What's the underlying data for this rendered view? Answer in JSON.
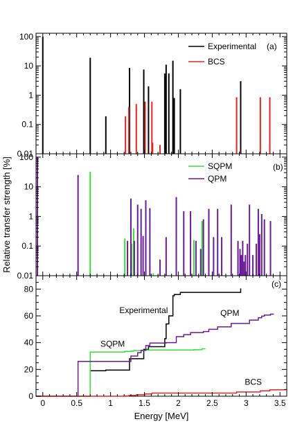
{
  "colors": {
    "experimental": "#000000",
    "bcs": "#e8231f",
    "sqpm": "#35e035",
    "qpm": "#6a1b9a",
    "axes": "#000000"
  },
  "shared_axis_labels": {
    "xlabel": "Energy [MeV]",
    "ylabel": "Relative transfer strength [%]"
  },
  "chart_data": [
    {
      "panel": "a",
      "panel_label": "(a)",
      "type": "bar",
      "yscale": "log",
      "xlim": [
        -0.1,
        3.6
      ],
      "ylim": [
        0.01,
        130
      ],
      "yticks": [
        0.01,
        0.1,
        1,
        10,
        100
      ],
      "ytick_labels": [
        "0.01",
        "0.1",
        "1",
        "10",
        "100"
      ],
      "grid": false,
      "legend_position": "top-right",
      "series": [
        {
          "name": "Experimental",
          "color": "#000000",
          "x": [
            0.0,
            0.7,
            0.93,
            1.28,
            1.49,
            1.56,
            1.8,
            1.82,
            1.86,
            1.92,
            1.94,
            2.03,
            2.92
          ],
          "values": [
            100,
            19,
            0.19,
            8.5,
            7.5,
            2.0,
            5.5,
            11,
            5.5,
            15,
            0.8,
            1.6,
            3.0
          ]
        },
        {
          "name": "BCS",
          "color": "#e8231f",
          "x": [
            1.22,
            1.27,
            1.38,
            1.51,
            1.61,
            1.62,
            1.73,
            2.86,
            3.21,
            3.35
          ],
          "values": [
            0.19,
            0.4,
            0.5,
            0.6,
            0.6,
            0.024,
            0.02,
            0.85,
            0.85,
            0.85
          ]
        }
      ]
    },
    {
      "panel": "b",
      "panel_label": "(b)",
      "type": "bar",
      "yscale": "log",
      "xlim": [
        -0.1,
        3.6
      ],
      "ylim": [
        0.01,
        130
      ],
      "yticks": [
        0.01,
        0.1,
        1,
        10,
        100
      ],
      "ytick_labels": [
        "0.01",
        "0.1",
        "1",
        "10",
        "100"
      ],
      "grid": false,
      "legend_position": "top-center",
      "series": [
        {
          "name": "SQPM",
          "color": "#35e035",
          "x": [
            0.7,
            1.21,
            1.31,
            1.34,
            1.52,
            1.63,
            2.23,
            2.35
          ],
          "values": [
            32,
            0.18,
            0.12,
            0.4,
            0.45,
            0.012,
            0.16,
            0.7
          ]
        },
        {
          "name": "QPM",
          "color": "#6a1b9a",
          "x": [
            -0.08,
            0.52,
            1.25,
            1.3,
            1.35,
            1.4,
            1.45,
            1.48,
            1.52,
            1.58,
            1.73,
            1.82,
            1.97,
            2.08,
            2.18,
            2.26,
            2.33,
            2.37,
            2.45,
            2.52,
            2.58,
            2.64,
            2.78,
            2.88,
            2.91,
            2.93,
            2.95,
            2.97,
            2.99,
            3.02,
            3.05,
            3.1,
            3.15,
            3.18,
            3.2,
            3.23,
            3.27,
            3.36
          ],
          "values": [
            100,
            25,
            0.15,
            4,
            0.15,
            2.5,
            1.8,
            0.22,
            3.5,
            1.9,
            0.035,
            0.2,
            4.5,
            1.5,
            1.5,
            0.15,
            0.08,
            0.8,
            1.8,
            0.2,
            1.8,
            0.2,
            2.5,
            0.15,
            0.08,
            0.05,
            0.15,
            0.03,
            0.05,
            0.12,
            2.5,
            0.05,
            0.12,
            1.8,
            0.25,
            1.2,
            0.8,
            0.7
          ]
        }
      ]
    },
    {
      "panel": "c",
      "panel_label": "(c)",
      "type": "line",
      "xlim": [
        -0.1,
        3.6
      ],
      "ylim": [
        0,
        90
      ],
      "xticks": [
        0,
        0.5,
        1,
        1.5,
        2,
        2.5,
        3,
        3.5
      ],
      "xtick_labels": [
        "0",
        "0.5",
        "1",
        "1.5",
        "2",
        "2.5",
        "3",
        "3.5"
      ],
      "yticks": [
        0,
        20,
        40,
        60,
        80
      ],
      "ytick_labels": [
        "0",
        "20",
        "40",
        "60",
        "80"
      ],
      "grid": false,
      "annotations": [
        {
          "text": "Experimental",
          "series": "Experimental",
          "x": 1.13,
          "y": 62
        },
        {
          "text": "QPM",
          "series": "QPM",
          "x": 2.62,
          "y": 60
        },
        {
          "text": "SQPM",
          "series": "SQPM",
          "x": 0.85,
          "y": 37
        },
        {
          "text": "BCS",
          "series": "BCS",
          "x": 2.98,
          "y": 8.5
        }
      ],
      "series": [
        {
          "name": "Experimental",
          "color": "#000000",
          "x": [
            0.7,
            0.93,
            1.28,
            1.49,
            1.56,
            1.8,
            1.82,
            1.86,
            1.92,
            1.94,
            2.03,
            2.92
          ],
          "y": [
            19,
            19.5,
            28,
            35,
            37,
            43,
            54,
            60,
            75,
            76,
            77.5,
            80.5
          ]
        },
        {
          "name": "SQPM",
          "color": "#35e035",
          "x": [
            0.7,
            1.21,
            1.31,
            1.34,
            1.52,
            1.63,
            2.23,
            2.35
          ],
          "y": [
            33,
            33.5,
            33.7,
            34.1,
            34.5,
            34.5,
            34.7,
            35.4
          ]
        },
        {
          "name": "QPM",
          "color": "#6a1b9a",
          "x": [
            0.52,
            1.25,
            1.3,
            1.4,
            1.45,
            1.52,
            1.58,
            1.82,
            1.97,
            2.08,
            2.18,
            2.37,
            2.45,
            2.58,
            2.78,
            3.05,
            3.18,
            3.23,
            3.27,
            3.36
          ],
          "y": [
            26,
            26,
            30,
            32.5,
            34.3,
            37.8,
            39.7,
            40,
            44.5,
            46,
            47.5,
            48.3,
            50,
            51.8,
            54.3,
            56.8,
            58.6,
            59.8,
            60.6,
            61.3
          ]
        },
        {
          "name": "BCS",
          "color": "#e8231f",
          "x": [
            1.22,
            1.27,
            1.38,
            1.51,
            1.61,
            2.86,
            3.21,
            3.35
          ],
          "y": [
            0.2,
            0.6,
            1.1,
            1.7,
            2.3,
            3.2,
            4.0,
            4.8
          ]
        }
      ]
    }
  ]
}
